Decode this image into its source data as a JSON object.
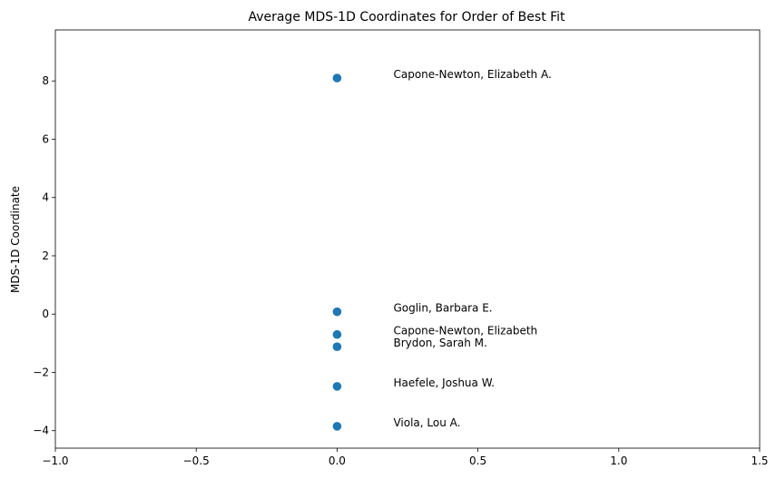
{
  "chart_data": {
    "type": "scatter",
    "title": "Average MDS-1D Coordinates for Order of Best Fit",
    "xlabel": "",
    "ylabel": "MDS-1D Coordinate",
    "xlim": [
      -1.0,
      1.5
    ],
    "ylim": [
      -4.6,
      9.75
    ],
    "x_ticks": [
      -1.0,
      -0.5,
      0.0,
      0.5,
      1.0,
      1.5
    ],
    "x_tick_labels": [
      "−1.0",
      "−0.5",
      "0.0",
      "0.5",
      "1.0",
      "1.5"
    ],
    "y_ticks": [
      -4,
      -2,
      0,
      2,
      4,
      6,
      8
    ],
    "y_tick_labels": [
      "−4",
      "−2",
      "0",
      "2",
      "4",
      "6",
      "8"
    ],
    "grid": false,
    "marker_color": "#1f77b4",
    "points": [
      {
        "x": 0.0,
        "y": 8.1,
        "label": "Capone-Newton, Elizabeth A."
      },
      {
        "x": 0.0,
        "y": 0.08,
        "label": "Goglin, Barbara E."
      },
      {
        "x": 0.0,
        "y": -0.7,
        "label": "Capone-Newton, Elizabeth"
      },
      {
        "x": 0.0,
        "y": -1.12,
        "label": "Brydon, Sarah M."
      },
      {
        "x": 0.0,
        "y": -2.48,
        "label": "Haefele, Joshua W."
      },
      {
        "x": 0.0,
        "y": -3.85,
        "label": "Viola, Lou A."
      }
    ],
    "annotation_x": 0.2
  }
}
